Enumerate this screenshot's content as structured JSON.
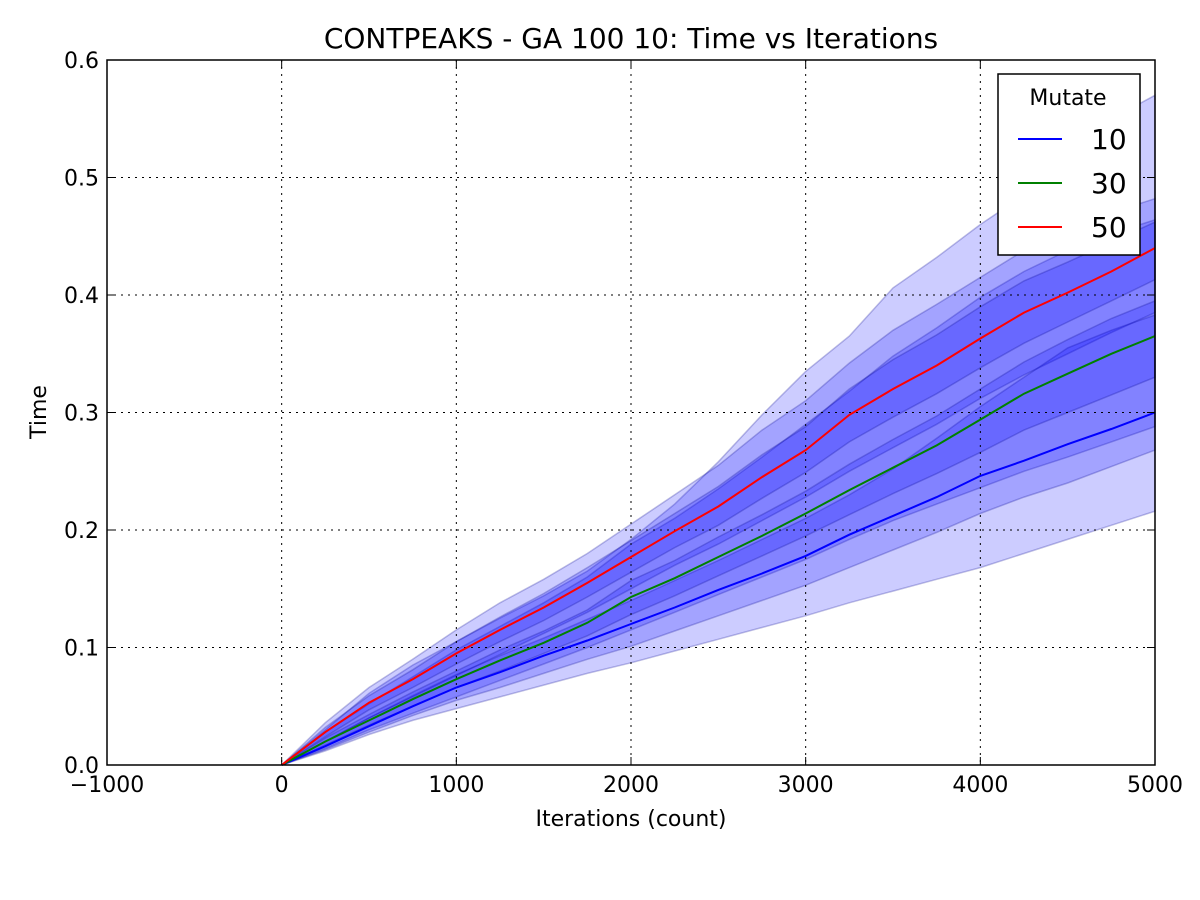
{
  "chart_data": {
    "type": "line",
    "title": "CONTPEAKS - GA 100 10: Time vs Iterations",
    "xlabel": "Iterations (count)",
    "ylabel": "Time",
    "xlim": [
      -1000,
      5000
    ],
    "ylim": [
      0.0,
      0.6
    ],
    "xticks": [
      -1000,
      0,
      1000,
      2000,
      3000,
      4000,
      5000
    ],
    "xtick_labels": [
      "−1000",
      "0",
      "1000",
      "2000",
      "3000",
      "4000",
      "5000"
    ],
    "yticks": [
      0.0,
      0.1,
      0.2,
      0.3,
      0.4,
      0.5,
      0.6
    ],
    "ytick_labels": [
      "0.0",
      "0.1",
      "0.2",
      "0.3",
      "0.4",
      "0.5",
      "0.6"
    ],
    "grid": true,
    "legend": {
      "title": "Mutate",
      "position": "top-right"
    },
    "band_color": "#0000ff",
    "x": [
      0,
      250,
      500,
      750,
      1000,
      1250,
      1500,
      1750,
      2000,
      2250,
      2500,
      2750,
      3000,
      3250,
      3500,
      3750,
      4000,
      4250,
      4500,
      4750,
      5000
    ],
    "series": [
      {
        "name": "10",
        "color": "#0000ff",
        "values": [
          0.0,
          0.016,
          0.033,
          0.05,
          0.066,
          0.079,
          0.093,
          0.106,
          0.12,
          0.134,
          0.149,
          0.163,
          0.178,
          0.196,
          0.212,
          0.228,
          0.246,
          0.259,
          0.273,
          0.286,
          0.3
        ],
        "outer_band": {
          "lower": [
            0.0,
            0.012,
            0.026,
            0.038,
            0.048,
            0.058,
            0.068,
            0.078,
            0.087,
            0.097,
            0.107,
            0.117,
            0.127,
            0.138,
            0.148,
            0.158,
            0.168,
            0.18,
            0.192,
            0.204,
            0.216
          ],
          "upper": [
            0.0,
            0.03,
            0.061,
            0.085,
            0.105,
            0.125,
            0.144,
            0.165,
            0.192,
            0.222,
            0.258,
            0.298,
            0.335,
            0.365,
            0.406,
            0.432,
            0.46,
            0.485,
            0.515,
            0.55,
            0.57
          ]
        },
        "inner_band": {
          "lower": [
            0.0,
            0.013,
            0.028,
            0.042,
            0.055,
            0.066,
            0.078,
            0.09,
            0.101,
            0.114,
            0.127,
            0.14,
            0.153,
            0.168,
            0.183,
            0.198,
            0.214,
            0.228,
            0.24,
            0.254,
            0.268
          ],
          "upper": [
            0.0,
            0.02,
            0.04,
            0.059,
            0.077,
            0.093,
            0.108,
            0.124,
            0.14,
            0.157,
            0.174,
            0.192,
            0.21,
            0.23,
            0.252,
            0.278,
            0.305,
            0.33,
            0.355,
            0.37,
            0.383
          ]
        }
      },
      {
        "name": "30",
        "color": "#008000",
        "values": [
          0.0,
          0.02,
          0.038,
          0.056,
          0.073,
          0.089,
          0.104,
          0.121,
          0.143,
          0.159,
          0.177,
          0.195,
          0.214,
          0.234,
          0.253,
          0.272,
          0.294,
          0.316,
          0.333,
          0.35,
          0.365
        ],
        "outer_band": {
          "lower": [
            0.0,
            0.014,
            0.03,
            0.044,
            0.058,
            0.072,
            0.086,
            0.1,
            0.115,
            0.13,
            0.145,
            0.16,
            0.175,
            0.192,
            0.208,
            0.222,
            0.236,
            0.25,
            0.262,
            0.275,
            0.288
          ],
          "upper": [
            0.0,
            0.028,
            0.052,
            0.075,
            0.098,
            0.118,
            0.138,
            0.16,
            0.188,
            0.21,
            0.235,
            0.262,
            0.29,
            0.318,
            0.348,
            0.372,
            0.398,
            0.42,
            0.438,
            0.452,
            0.464
          ]
        },
        "inner_band": {
          "lower": [
            0.0,
            0.017,
            0.034,
            0.05,
            0.066,
            0.08,
            0.095,
            0.11,
            0.128,
            0.144,
            0.161,
            0.178,
            0.195,
            0.213,
            0.231,
            0.248,
            0.266,
            0.285,
            0.3,
            0.315,
            0.33
          ],
          "upper": [
            0.0,
            0.023,
            0.043,
            0.062,
            0.08,
            0.098,
            0.114,
            0.132,
            0.157,
            0.174,
            0.194,
            0.213,
            0.233,
            0.256,
            0.277,
            0.297,
            0.32,
            0.343,
            0.362,
            0.38,
            0.395
          ]
        }
      },
      {
        "name": "50",
        "color": "#ff0000",
        "values": [
          0.0,
          0.028,
          0.053,
          0.073,
          0.095,
          0.115,
          0.134,
          0.155,
          0.177,
          0.199,
          0.22,
          0.245,
          0.268,
          0.298,
          0.32,
          0.34,
          0.363,
          0.385,
          0.402,
          0.42,
          0.44
        ],
        "outer_band": {
          "lower": [
            0.0,
            0.02,
            0.04,
            0.058,
            0.076,
            0.094,
            0.112,
            0.13,
            0.15,
            0.17,
            0.188,
            0.208,
            0.228,
            0.25,
            0.27,
            0.29,
            0.312,
            0.332,
            0.35,
            0.368,
            0.385
          ],
          "upper": [
            0.0,
            0.036,
            0.066,
            0.09,
            0.115,
            0.138,
            0.158,
            0.18,
            0.205,
            0.23,
            0.255,
            0.285,
            0.31,
            0.342,
            0.37,
            0.392,
            0.415,
            0.438,
            0.455,
            0.47,
            0.482
          ]
        },
        "inner_band": {
          "lower": [
            0.0,
            0.024,
            0.047,
            0.066,
            0.086,
            0.105,
            0.123,
            0.143,
            0.164,
            0.185,
            0.204,
            0.227,
            0.249,
            0.275,
            0.296,
            0.316,
            0.338,
            0.359,
            0.377,
            0.395,
            0.413
          ],
          "upper": [
            0.0,
            0.032,
            0.059,
            0.081,
            0.105,
            0.126,
            0.146,
            0.168,
            0.191,
            0.214,
            0.237,
            0.264,
            0.288,
            0.32,
            0.345,
            0.366,
            0.39,
            0.412,
            0.428,
            0.445,
            0.462
          ]
        }
      }
    ]
  }
}
